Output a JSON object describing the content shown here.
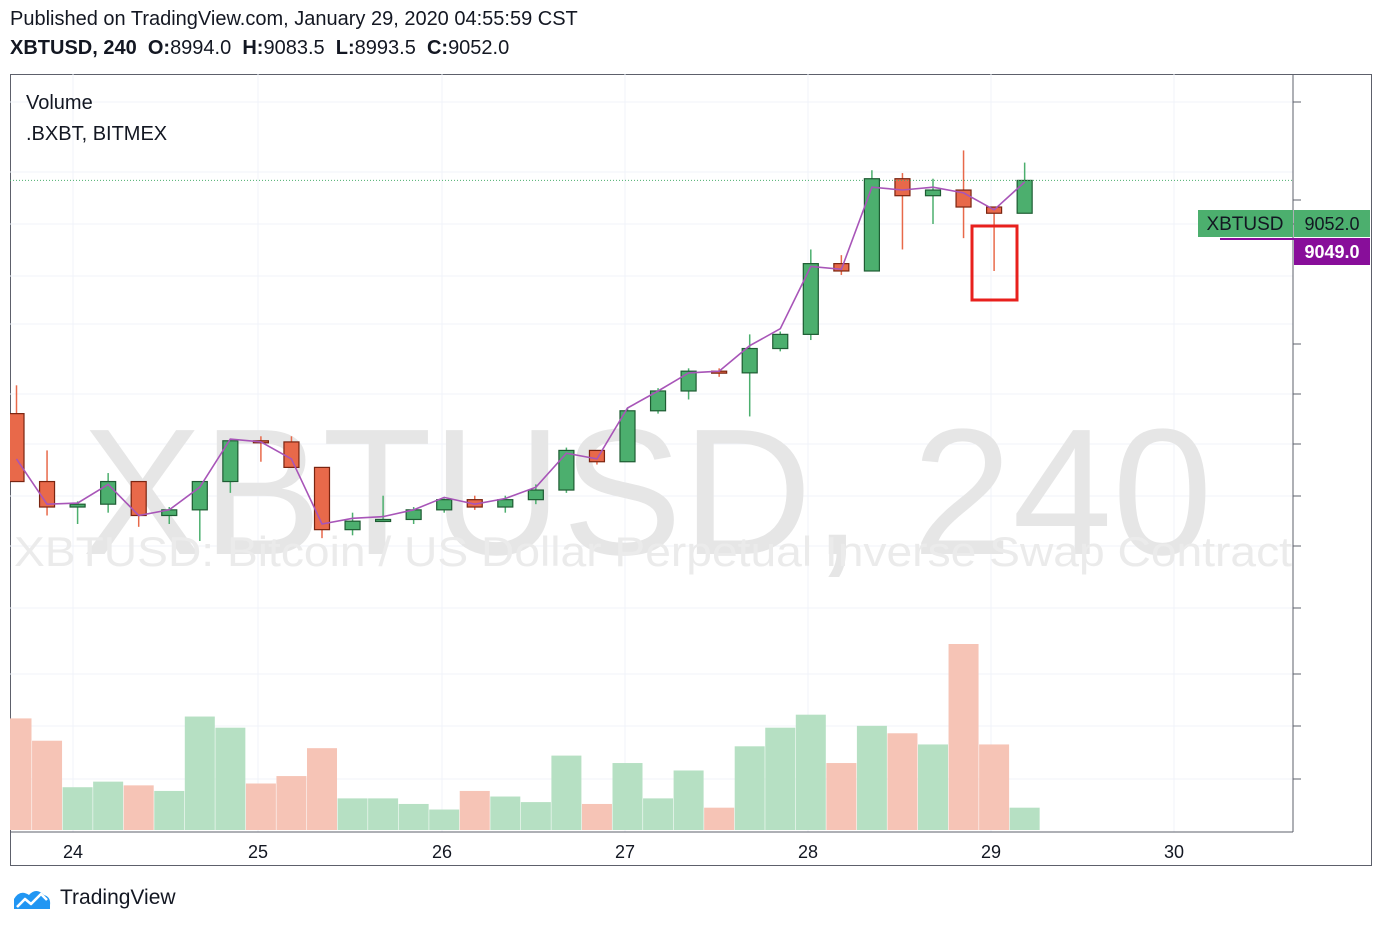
{
  "header": {
    "published": "Published on TradingView.com, January 29, 2020 04:55:59 CST",
    "symbol_interval": "XBTUSD, 240",
    "ohlc": [
      {
        "label": "O:",
        "value": "8994.0"
      },
      {
        "label": "H:",
        "value": "9083.5"
      },
      {
        "label": "L:",
        "value": "8993.5"
      },
      {
        "label": "C:",
        "value": "9052.0"
      }
    ]
  },
  "pane": {
    "volume_label": "Volume",
    "source_label": ".BXBT, BITMEX"
  },
  "watermark": {
    "main": "XBTUSD, 240",
    "sub": "XBTUSD: Bitcoin / US Dollar Perpetual Inverse Swap Contract"
  },
  "price_tags": {
    "symbol_tag": "XBTUSD",
    "last_price": "9052.0",
    "index_price": "9049.0"
  },
  "branding": {
    "name": "TradingView"
  },
  "colors": {
    "up": "#4caf6e",
    "down": "#e8694a",
    "up_volume": "#b6e0c3",
    "down_volume": "#f6c4b6",
    "index_line": "#a855b8",
    "index_tag": "#880e9a",
    "highlight": "#e8201d"
  },
  "chart_data": {
    "type": "candlestick",
    "x_ticks": [
      "24",
      "25",
      "26",
      "27",
      "28",
      "29",
      "30"
    ],
    "ylim": [
      8180,
      9240
    ],
    "volume_ylim": [
      0,
      100
    ],
    "grid": true,
    "candles": [
      {
        "o": 8640,
        "h": 8690,
        "l": 8520,
        "c": 8520,
        "vol": 60
      },
      {
        "o": 8520,
        "h": 8575,
        "l": 8460,
        "c": 8475,
        "vol": 48
      },
      {
        "o": 8475,
        "h": 8485,
        "l": 8445,
        "c": 8480,
        "vol": 23
      },
      {
        "o": 8480,
        "h": 8535,
        "l": 8465,
        "c": 8520,
        "vol": 26
      },
      {
        "o": 8520,
        "h": 8520,
        "l": 8440,
        "c": 8460,
        "vol": 24
      },
      {
        "o": 8460,
        "h": 8475,
        "l": 8445,
        "c": 8470,
        "vol": 21
      },
      {
        "o": 8470,
        "h": 8520,
        "l": 8415,
        "c": 8520,
        "vol": 61
      },
      {
        "o": 8520,
        "h": 8595,
        "l": 8500,
        "c": 8592,
        "vol": 55
      },
      {
        "o": 8592,
        "h": 8600,
        "l": 8555,
        "c": 8590,
        "vol": 25
      },
      {
        "o": 8590,
        "h": 8600,
        "l": 8545,
        "c": 8545,
        "vol": 29
      },
      {
        "o": 8545,
        "h": 8545,
        "l": 8420,
        "c": 8435,
        "vol": 44
      },
      {
        "o": 8435,
        "h": 8465,
        "l": 8425,
        "c": 8450,
        "vol": 17
      },
      {
        "o": 8450,
        "h": 8495,
        "l": 8450,
        "c": 8453,
        "vol": 17
      },
      {
        "o": 8453,
        "h": 8475,
        "l": 8445,
        "c": 8470,
        "vol": 14
      },
      {
        "o": 8470,
        "h": 8490,
        "l": 8465,
        "c": 8488,
        "vol": 11
      },
      {
        "o": 8488,
        "h": 8495,
        "l": 8470,
        "c": 8475,
        "vol": 21
      },
      {
        "o": 8475,
        "h": 8495,
        "l": 8465,
        "c": 8488,
        "vol": 18
      },
      {
        "o": 8488,
        "h": 8515,
        "l": 8480,
        "c": 8505,
        "vol": 15
      },
      {
        "o": 8505,
        "h": 8580,
        "l": 8500,
        "c": 8575,
        "vol": 40
      },
      {
        "o": 8575,
        "h": 8575,
        "l": 8550,
        "c": 8555,
        "vol": 14
      },
      {
        "o": 8555,
        "h": 8650,
        "l": 8555,
        "c": 8645,
        "vol": 36
      },
      {
        "o": 8645,
        "h": 8685,
        "l": 8640,
        "c": 8680,
        "vol": 17
      },
      {
        "o": 8680,
        "h": 8720,
        "l": 8665,
        "c": 8715,
        "vol": 32
      },
      {
        "o": 8715,
        "h": 8720,
        "l": 8705,
        "c": 8712,
        "vol": 12
      },
      {
        "o": 8712,
        "h": 8780,
        "l": 8635,
        "c": 8755,
        "vol": 45
      },
      {
        "o": 8755,
        "h": 8785,
        "l": 8750,
        "c": 8780,
        "vol": 55
      },
      {
        "o": 8780,
        "h": 8930,
        "l": 8770,
        "c": 8905,
        "vol": 62
      },
      {
        "o": 8905,
        "h": 8920,
        "l": 8885,
        "c": 8892,
        "vol": 36
      },
      {
        "o": 8892,
        "h": 9070,
        "l": 8892,
        "c": 9055,
        "vol": 56
      },
      {
        "o": 9055,
        "h": 9065,
        "l": 8930,
        "c": 9025,
        "vol": 52
      },
      {
        "o": 9025,
        "h": 9055,
        "l": 8975,
        "c": 9035,
        "vol": 46
      },
      {
        "o": 9035,
        "h": 9105,
        "l": 8950,
        "c": 9005,
        "vol": 100
      },
      {
        "o": 9005,
        "h": 9005,
        "l": 8892,
        "c": 8994,
        "vol": 46
      },
      {
        "o": 8994,
        "h": 9083.5,
        "l": 8993.5,
        "c": 9052,
        "vol": 12
      }
    ],
    "index_line": [
      8560,
      8480,
      8482,
      8515,
      8460,
      8470,
      8510,
      8595,
      8590,
      8560,
      8445,
      8455,
      8458,
      8470,
      8492,
      8480,
      8490,
      8510,
      8570,
      8560,
      8650,
      8680,
      8712,
      8715,
      8760,
      8790,
      8900,
      8895,
      9040,
      9035,
      9040,
      9030,
      9000,
      9049
    ]
  }
}
